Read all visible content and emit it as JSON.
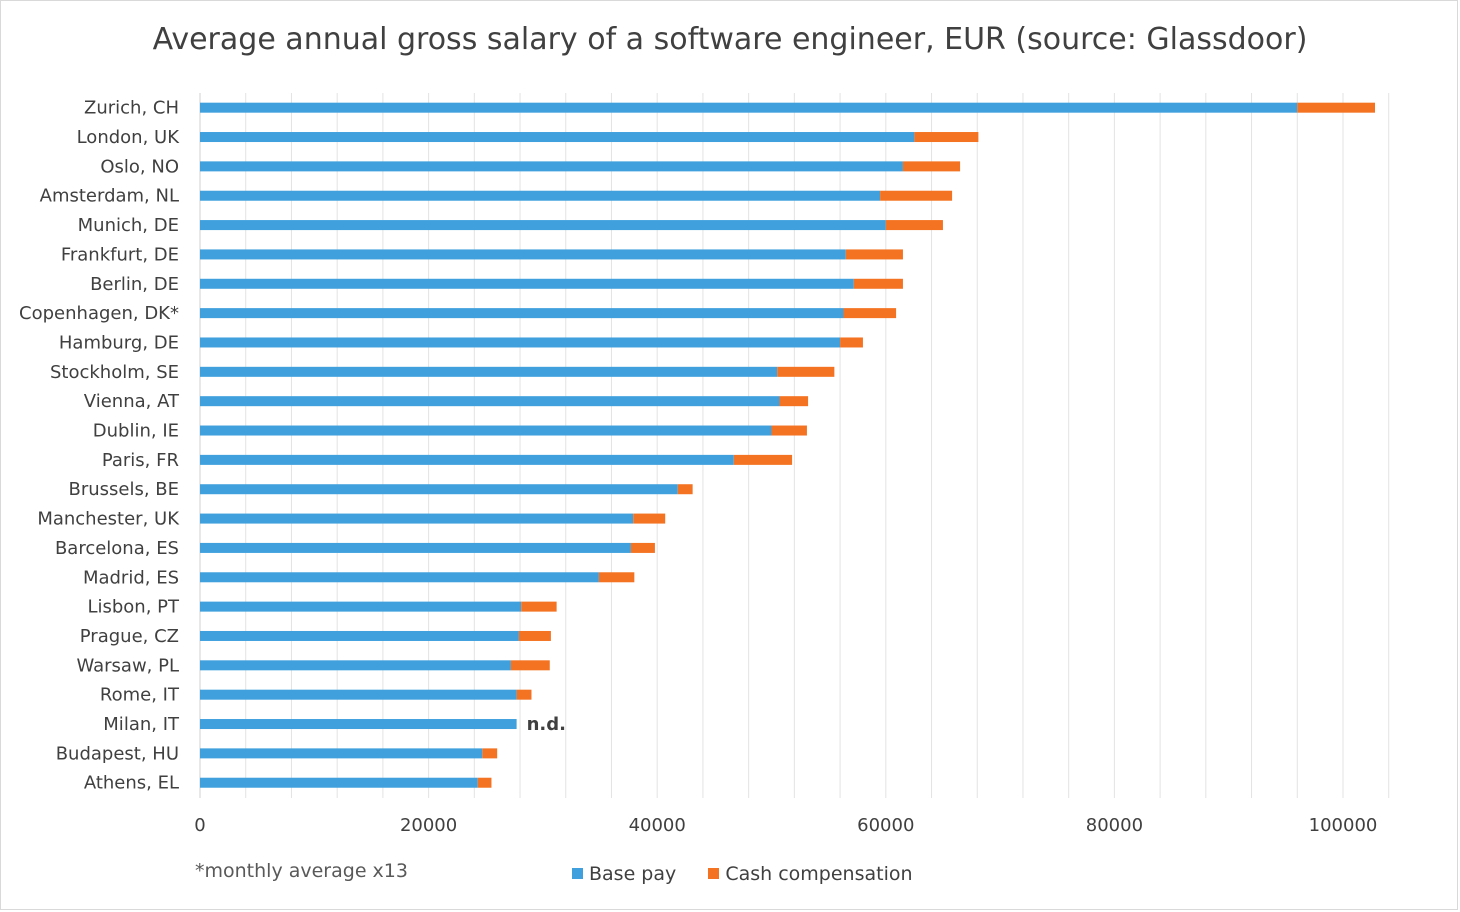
{
  "chart_data": {
    "type": "bar",
    "orientation": "horizontal",
    "stacked": true,
    "title": "Average annual gross salary of a software engineer, EUR (source: Glassdoor)",
    "categories": [
      "Zurich, CH",
      "London, UK",
      "Oslo, NO",
      "Amsterdam, NL",
      "Munich, DE",
      "Frankfurt, DE",
      "Berlin, DE",
      "Copenhagen, DK*",
      "Hamburg, DE",
      "Stockholm, SE",
      "Vienna, AT",
      "Dublin, IE",
      "Paris, FR",
      "Brussels, BE",
      "Manchester, UK",
      "Barcelona, ES",
      "Madrid, ES",
      "Lisbon, PT",
      "Prague, CZ",
      "Warsaw, PL",
      "Rome, IT",
      "Milan, IT",
      "Budapest, HU",
      "Athens, EL"
    ],
    "series": [
      {
        "name": "Base pay",
        "values": [
          96000,
          62500,
          61500,
          59500,
          60000,
          56500,
          57200,
          56300,
          56000,
          50500,
          50700,
          50000,
          46700,
          41800,
          37900,
          37700,
          34900,
          28100,
          27900,
          27200,
          27700,
          27700,
          24700,
          24300
        ]
      },
      {
        "name": "Cash compensation",
        "values": [
          6800,
          5600,
          5000,
          6300,
          5000,
          5000,
          4300,
          4600,
          2000,
          5000,
          2500,
          3100,
          5100,
          1300,
          2800,
          2100,
          3100,
          3100,
          2800,
          3400,
          1300,
          null,
          1300,
          1200
        ]
      }
    ],
    "annotations": [
      {
        "category": "Milan, IT",
        "text": "n.d."
      }
    ],
    "xlim": [
      0,
      104000
    ],
    "xticks": [
      0,
      20000,
      40000,
      60000,
      80000,
      100000
    ],
    "grid": "vertical",
    "legend": "bottom",
    "footnote": "*monthly average x13",
    "colors": {
      "Base pay": "#3fa0dd",
      "Cash compensation": "#f47322",
      "grid": "#e3e3e3"
    }
  }
}
